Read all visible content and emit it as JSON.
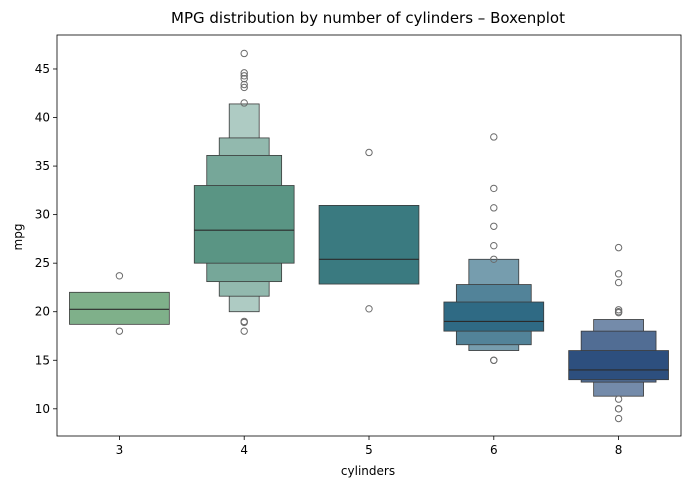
{
  "chart_data": {
    "type": "boxenplot",
    "title": "MPG distribution by number of cylinders – Boxenplot",
    "xlabel": "cylinders",
    "ylabel": "mpg",
    "ylim": [
      7.2,
      48.5
    ],
    "yticks": [
      10,
      15,
      20,
      25,
      30,
      35,
      40,
      45
    ],
    "grid": false,
    "categories": [
      "3",
      "4",
      "5",
      "6",
      "8"
    ],
    "groups": [
      {
        "category": "3",
        "color": "#7fb08a",
        "median": 20.25,
        "levels": [
          [
            18.7,
            22.0
          ]
        ],
        "outliers": [
          23.7,
          18.0
        ]
      },
      {
        "category": "4",
        "color": "#5a9584",
        "median": 28.4,
        "levels": [
          [
            25.0,
            33.0
          ],
          [
            23.1,
            36.1
          ],
          [
            21.6,
            37.9
          ],
          [
            20.0,
            41.4
          ]
        ],
        "outliers": [
          46.6,
          44.6,
          44.3,
          44.0,
          43.4,
          43.1,
          41.5,
          19.0,
          18.9,
          18.0
        ]
      },
      {
        "category": "5",
        "color": "#3a7a80",
        "median": 25.4,
        "levels": [
          [
            22.85,
            30.95
          ]
        ],
        "outliers": [
          36.4,
          20.3
        ]
      },
      {
        "category": "6",
        "color": "#2f6a84",
        "median": 19.0,
        "levels": [
          [
            18.0,
            21.0
          ],
          [
            16.6,
            22.8
          ],
          [
            16.0,
            25.4
          ]
        ],
        "outliers": [
          38.0,
          32.7,
          30.7,
          28.8,
          26.8,
          25.4,
          15.0,
          15.0
        ]
      },
      {
        "category": "8",
        "color": "#2d4f7e",
        "median": 14.0,
        "levels": [
          [
            13.0,
            16.0
          ],
          [
            12.75,
            18.0
          ],
          [
            11.3,
            19.2
          ]
        ],
        "outliers": [
          26.6,
          23.9,
          23.0,
          20.2,
          20.0,
          19.9,
          11.0,
          10.0,
          10.0,
          9.0
        ]
      }
    ]
  }
}
